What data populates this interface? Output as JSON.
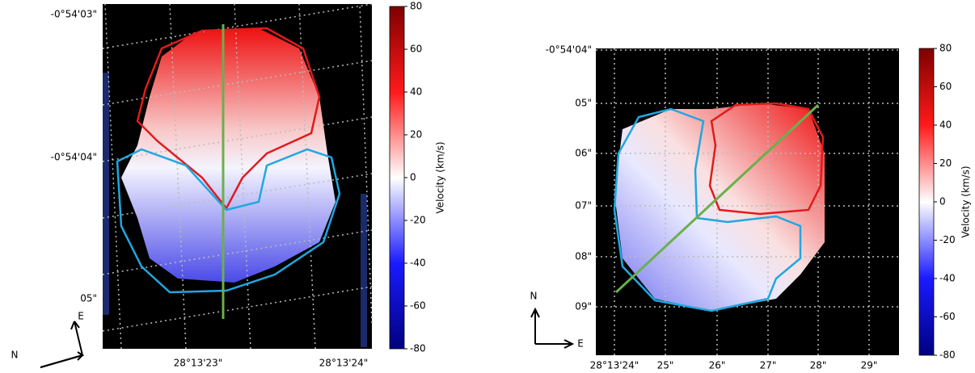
{
  "panels": [
    {
      "y_labels": [
        "-0°54'03\"",
        "-0°54'04\"",
        "05\""
      ],
      "x_labels": [
        "28°13'23\"",
        "28°13'24\""
      ],
      "compass": [
        "N",
        "E"
      ],
      "colorbar": {
        "label": "Velocity (km/s)",
        "ylim": [
          -80,
          80
        ],
        "yticks": [
          -80,
          -60,
          -40,
          -20,
          0,
          20,
          40,
          60,
          80
        ]
      }
    },
    {
      "y_labels": [
        "-0°54'04\"",
        "05\"",
        "06\"",
        "07\"",
        "08\"",
        "09\""
      ],
      "x_labels": [
        "28°13'24\"",
        "25\"",
        "26\"",
        "27\"",
        "28\"",
        "29\""
      ],
      "compass": [
        "N",
        "E"
      ],
      "colorbar": {
        "label": "Velocity (km/s)",
        "ylim": [
          -80,
          80
        ],
        "yticks": [
          -80,
          -60,
          -40,
          -20,
          0,
          20,
          40,
          60,
          80
        ]
      }
    }
  ]
}
